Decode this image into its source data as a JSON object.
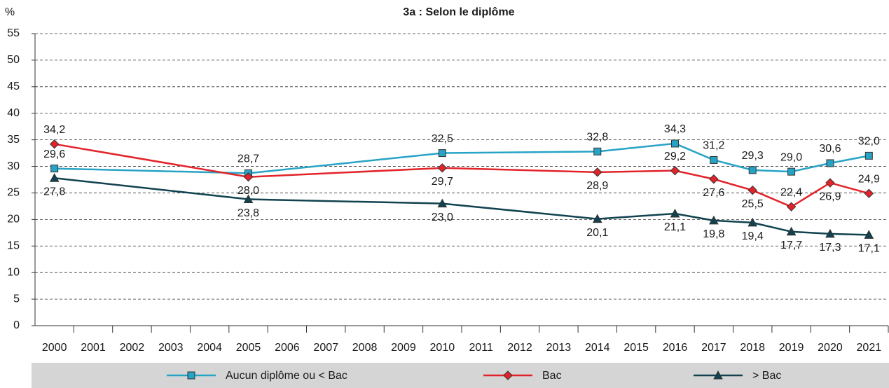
{
  "chart_data": {
    "type": "line",
    "title": "3a : Selon le diplôme",
    "y_label": "%",
    "x": [
      2000,
      2005,
      2010,
      2014,
      2016,
      2017,
      2018,
      2019,
      2020,
      2021
    ],
    "xlim": [
      1999.5,
      2021.5
    ],
    "xticks": [
      2000,
      2001,
      2002,
      2003,
      2004,
      2005,
      2006,
      2007,
      2008,
      2009,
      2010,
      2011,
      2012,
      2013,
      2014,
      2015,
      2016,
      2017,
      2018,
      2019,
      2020,
      2021
    ],
    "ylim": [
      0,
      55
    ],
    "yticks": [
      0,
      5,
      10,
      15,
      20,
      25,
      30,
      35,
      40,
      45,
      50,
      55
    ],
    "grid": true,
    "series": [
      {
        "name": "Aucun diplôme ou < Bac",
        "color": "#27a3c6",
        "marker": "square",
        "values": [
          29.6,
          28.7,
          32.5,
          32.8,
          34.3,
          31.2,
          29.3,
          29.0,
          30.6,
          32.0
        ],
        "value_labels": [
          "29,6",
          "28,7",
          "32,5",
          "32,8",
          "34,3",
          "31,2",
          "29,3",
          "29,0",
          "30,6",
          "32,0"
        ]
      },
      {
        "name": "Bac",
        "color": "#e3232a",
        "marker": "diamond",
        "values": [
          34.2,
          28.0,
          29.7,
          28.9,
          29.2,
          27.6,
          25.5,
          22.4,
          26.9,
          24.9
        ],
        "value_labels": [
          "34,2",
          "28,0",
          "29,7",
          "28,9",
          "29,2",
          "27,6",
          "25,5",
          "22,4",
          "26,9",
          "24,9"
        ]
      },
      {
        "name": "> Bac",
        "color": "#11424f",
        "marker": "triangle",
        "values": [
          27.8,
          23.8,
          23.0,
          20.1,
          21.1,
          19.8,
          19.4,
          17.7,
          17.3,
          17.1
        ],
        "value_labels": [
          "27,8",
          "23,8",
          "23,0",
          "20,1",
          "21,1",
          "19,8",
          "19,4",
          "17,7",
          "17,3",
          "17,1"
        ]
      }
    ]
  }
}
